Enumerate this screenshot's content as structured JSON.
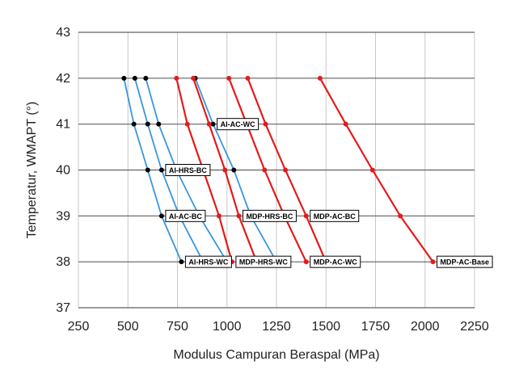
{
  "chart_data": {
    "type": "line",
    "xlabel": "Modulus Campuran Beraspal (MPa)",
    "ylabel": "Temperatur, WMAPT (°)",
    "xlim": [
      250,
      2250
    ],
    "ylim": [
      37,
      43
    ],
    "xticks": [
      "250",
      "500",
      "750",
      "1000",
      "1250",
      "1500",
      "1750",
      "2000",
      "2250"
    ],
    "yticks": [
      "37",
      "38",
      "39",
      "40",
      "41",
      "42",
      "43"
    ],
    "grid": "horizontal",
    "colors": {
      "blue_line": "#3a96dd",
      "blue_marker": "#000000",
      "red_line": "#e31b1b",
      "red_marker": "#e31b1b",
      "grid": "#c8c8c8",
      "hgrid": "#606060"
    },
    "series": [
      {
        "name": "AI-HRS-WC",
        "color": "blue",
        "x": [
          480,
          530,
          600,
          670,
          770
        ],
        "y": [
          42,
          41,
          40,
          39,
          38
        ]
      },
      {
        "name": "AI-HRS-BC",
        "color": "blue",
        "x": [
          535,
          600,
          670,
          760,
          880
        ],
        "y": [
          42,
          41,
          40,
          39,
          38
        ]
      },
      {
        "name": "AI-AC-BC",
        "color": "blue",
        "x": [
          590,
          655,
          745,
          860,
          1000
        ],
        "y": [
          42,
          41,
          40,
          39,
          38
        ]
      },
      {
        "name": "AI-AC-WC",
        "color": "blue",
        "x": [
          840,
          930,
          1035,
          1120,
          1250
        ],
        "y": [
          42,
          41,
          40,
          39,
          38
        ]
      },
      {
        "name": "MDP-HRS-WC",
        "color": "red",
        "x": [
          745,
          800,
          880,
          960,
          1025
        ],
        "y": [
          42,
          41,
          40,
          39,
          38
        ]
      },
      {
        "name": "MDP-HRS-BC",
        "color": "red",
        "x": [
          830,
          910,
          990,
          1060,
          1150
        ],
        "y": [
          42,
          41,
          40,
          39,
          38
        ]
      },
      {
        "name": "MDP-AC-WC",
        "color": "red",
        "x": [
          1010,
          1100,
          1190,
          1290,
          1400
        ],
        "y": [
          42,
          41,
          40,
          39,
          38
        ]
      },
      {
        "name": "MDP-AC-BC",
        "color": "red",
        "x": [
          1105,
          1195,
          1295,
          1400,
          1500
        ],
        "y": [
          42,
          41,
          40,
          39,
          38
        ]
      },
      {
        "name": "MDP-AC-Base",
        "color": "red",
        "x": [
          1470,
          1600,
          1735,
          1875,
          2040
        ],
        "y": [
          42,
          41,
          40,
          39,
          38
        ]
      }
    ],
    "annotations": [
      {
        "text": "AI-AC-WC",
        "x": 930,
        "y": 41
      },
      {
        "text": "AI-HRS-BC",
        "x": 670,
        "y": 40
      },
      {
        "text": "AI-AC-BC",
        "x": 670,
        "y": 39
      },
      {
        "text": "MDP-HRS-BC",
        "x": 1060,
        "y": 39
      },
      {
        "text": "MDP-AC-BC",
        "x": 1400,
        "y": 39
      },
      {
        "text": "AI-HRS-WC",
        "x": 770,
        "y": 38
      },
      {
        "text": "MDP-HRS-WC",
        "x": 1025,
        "y": 38
      },
      {
        "text": "MDP-AC-WC",
        "x": 1400,
        "y": 38
      },
      {
        "text": "MDP-AC-Base",
        "x": 2040,
        "y": 38
      }
    ]
  }
}
